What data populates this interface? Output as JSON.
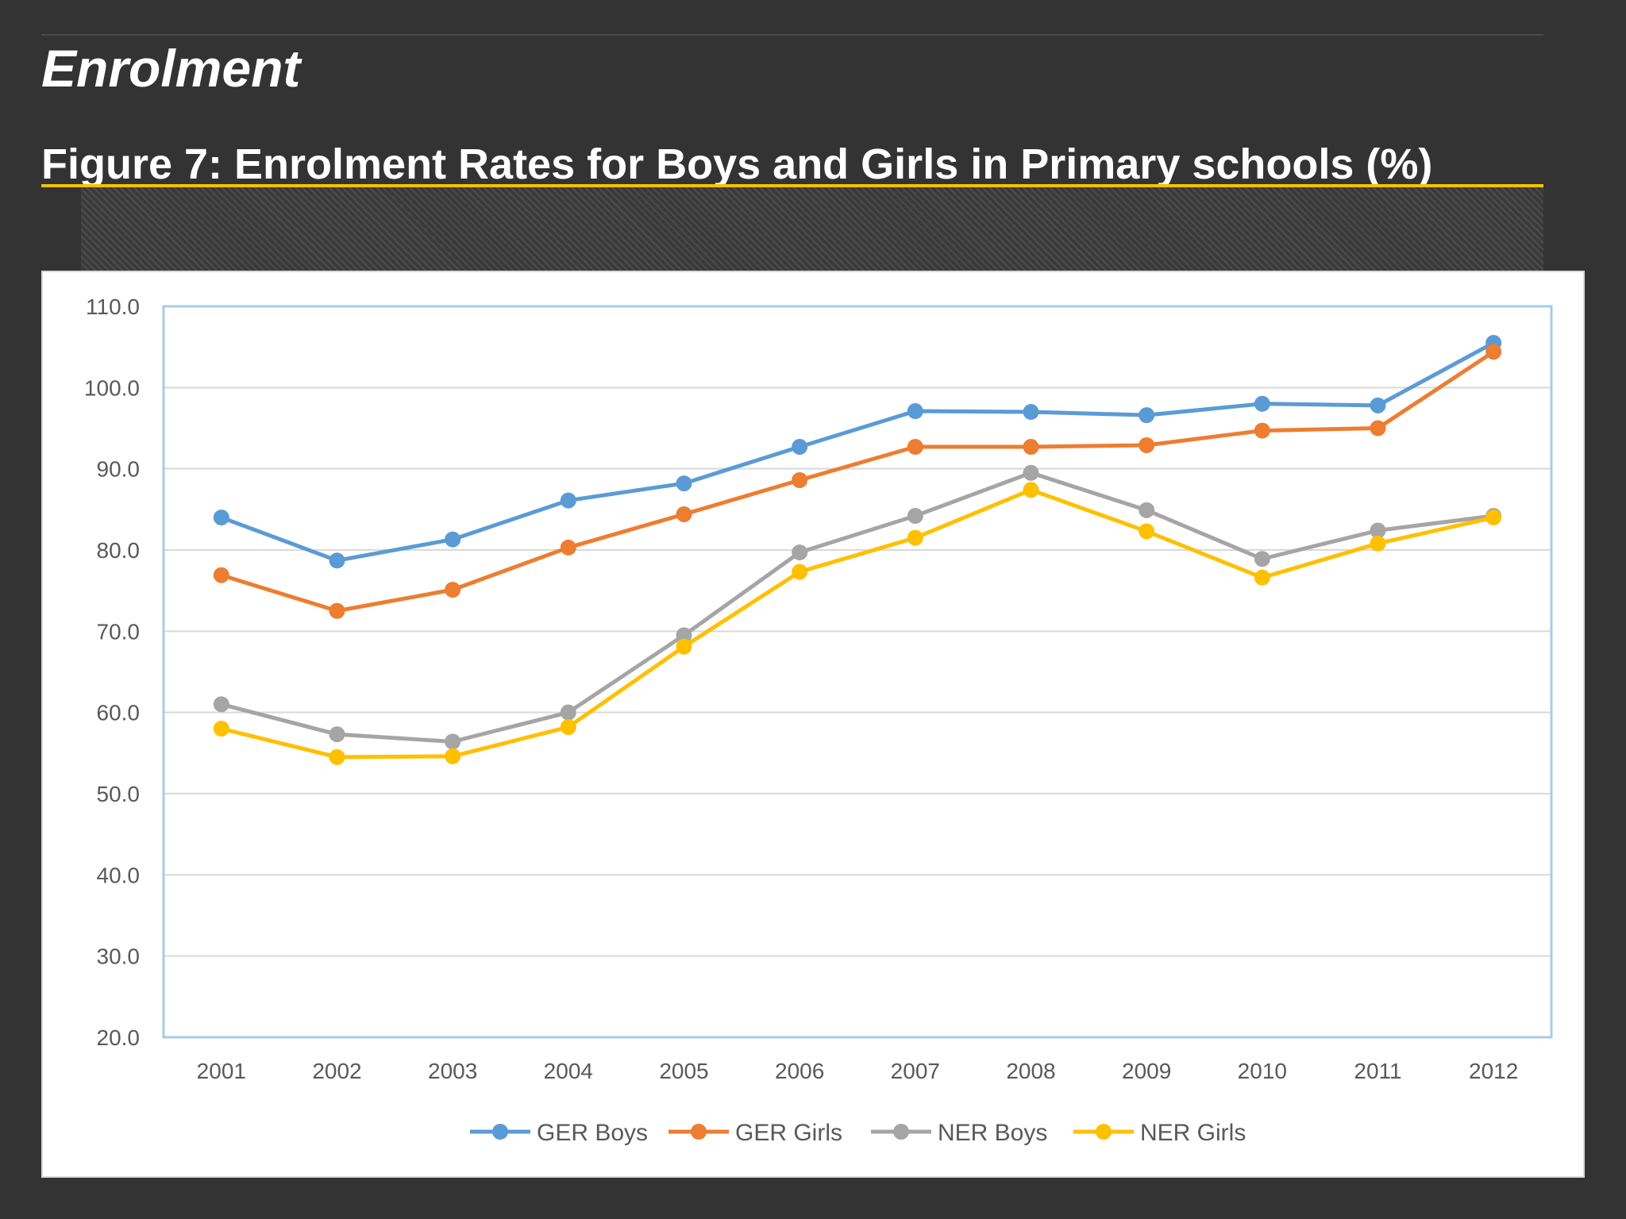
{
  "slide": {
    "title": "Enrolment",
    "figure_title": "Figure 7: Enrolment Rates for Boys and Girls in Primary schools (%)"
  },
  "colors": {
    "background": "#333333",
    "accent": "#f3c300",
    "ger_boys": "#5b9bd5",
    "ger_girls": "#ed7d31",
    "ner_boys": "#a5a5a5",
    "ner_girls": "#ffc000"
  },
  "chart_data": {
    "type": "line",
    "title": "",
    "xlabel": "",
    "ylabel": "",
    "categories": [
      "2001",
      "2002",
      "2003",
      "2004",
      "2005",
      "2006",
      "2007",
      "2008",
      "2009",
      "2010",
      "2011",
      "2012"
    ],
    "ylim": [
      20.0,
      110.0
    ],
    "y_ticks": [
      "110.0",
      "100.0",
      "90.0",
      "80.0",
      "70.0",
      "60.0",
      "50.0",
      "40.0",
      "30.0",
      "20.0"
    ],
    "grid": true,
    "legend_position": "bottom",
    "series": [
      {
        "name": "GER Boys",
        "color": "#5b9bd5",
        "values": [
          84.0,
          78.7,
          81.3,
          86.1,
          88.2,
          92.7,
          97.1,
          97.0,
          96.6,
          98.0,
          97.8,
          105.5
        ]
      },
      {
        "name": "GER Girls",
        "color": "#ed7d31",
        "values": [
          76.9,
          72.5,
          75.1,
          80.3,
          84.4,
          88.6,
          92.7,
          92.7,
          92.9,
          94.7,
          95.0,
          104.4
        ]
      },
      {
        "name": "NER Boys",
        "color": "#a5a5a5",
        "values": [
          61.0,
          57.3,
          56.4,
          60.0,
          69.5,
          79.7,
          84.2,
          89.5,
          84.9,
          78.9,
          82.4,
          84.2
        ]
      },
      {
        "name": "NER Girls",
        "color": "#ffc000",
        "values": [
          58.0,
          54.5,
          54.6,
          58.2,
          68.1,
          77.3,
          81.5,
          87.4,
          82.3,
          76.6,
          80.8,
          84.0
        ]
      }
    ]
  }
}
